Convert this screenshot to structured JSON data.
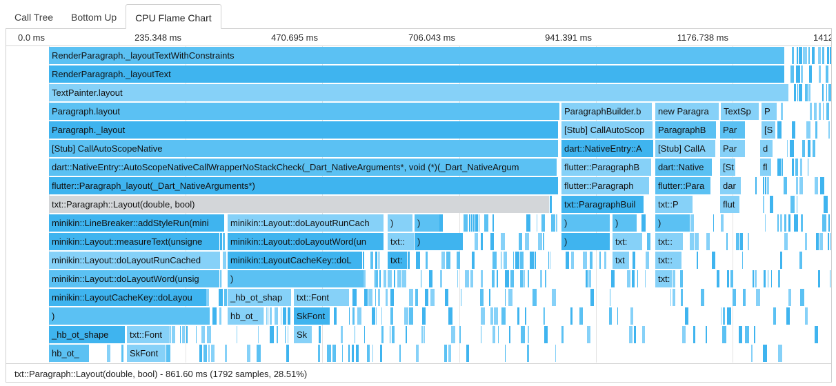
{
  "tabs": [
    {
      "label": "Call Tree",
      "active": false
    },
    {
      "label": "Bottom Up",
      "active": false
    },
    {
      "label": "CPU Flame Chart",
      "active": true
    }
  ],
  "ruler": {
    "ticks": [
      "0.0 ms",
      "235.348 ms",
      "470.695 ms",
      "706.043 ms",
      "941.391 ms",
      "1176.738 ms",
      "1412"
    ]
  },
  "colors": {
    "dark": "#3fb4ef",
    "mid": "#5bc1f3",
    "light": "#86d1f8",
    "selected": "#d3d6d9"
  },
  "rows": [
    [
      "RenderParagraph._layoutTextWithConstraints"
    ],
    [
      "RenderParagraph._layoutText"
    ],
    [
      "TextPainter.layout"
    ],
    [
      "Paragraph.layout",
      "ParagraphBuilder.b",
      "new Paragra",
      "TextSp",
      "P"
    ],
    [
      "Paragraph._layout",
      "[Stub] CallAutoScop",
      "ParagraphB",
      "Par",
      "[S"
    ],
    [
      "[Stub] CallAutoScopeNative",
      "dart::NativeEntry::A",
      "[Stub] CallA",
      "Par",
      "d"
    ],
    [
      "dart::NativeEntry::AutoScopeNativeCallWrapperNoStackCheck(_Dart_NativeArguments*, void (*)(_Dart_NativeArgum",
      "flutter::ParagraphB",
      "dart::Native",
      "[St",
      "fl"
    ],
    [
      "flutter::Paragraph_layout(_Dart_NativeArguments*)",
      "flutter::Paragraph",
      "flutter::Para",
      "dar"
    ],
    [
      "txt::Paragraph::Layout(double, bool)",
      "txt::ParagraphBuil",
      "txt::P",
      "flut"
    ],
    [
      "minikin::LineBreaker::addStyleRun(mini",
      "minikin::Layout::doLayoutRunCach",
      ")",
      ")",
      ")",
      ")",
      ")"
    ],
    [
      "minikin::Layout::measureText(unsigne",
      "minikin::Layout::doLayoutWord(un",
      "txt::",
      ")",
      ")",
      "txt:",
      "txt::"
    ],
    [
      "minikin::Layout::doLayoutRunCached",
      "minikin::LayoutCacheKey::doL",
      "txt:",
      "txt",
      "txt::"
    ],
    [
      "minikin::Layout::doLayoutWord(unsig",
      ")",
      "txt:"
    ],
    [
      "minikin::LayoutCacheKey::doLayou",
      "_hb_ot_shap",
      "txt::Font"
    ],
    [
      ")",
      "hb_ot_",
      "SkFont"
    ],
    [
      "_hb_ot_shape",
      "txt::Font",
      "Sk"
    ],
    [
      "hb_ot_",
      "SkFont"
    ]
  ],
  "status": "txt::Paragraph::Layout(double, bool) - 861.60 ms (1792 samples, 28.51%)"
}
